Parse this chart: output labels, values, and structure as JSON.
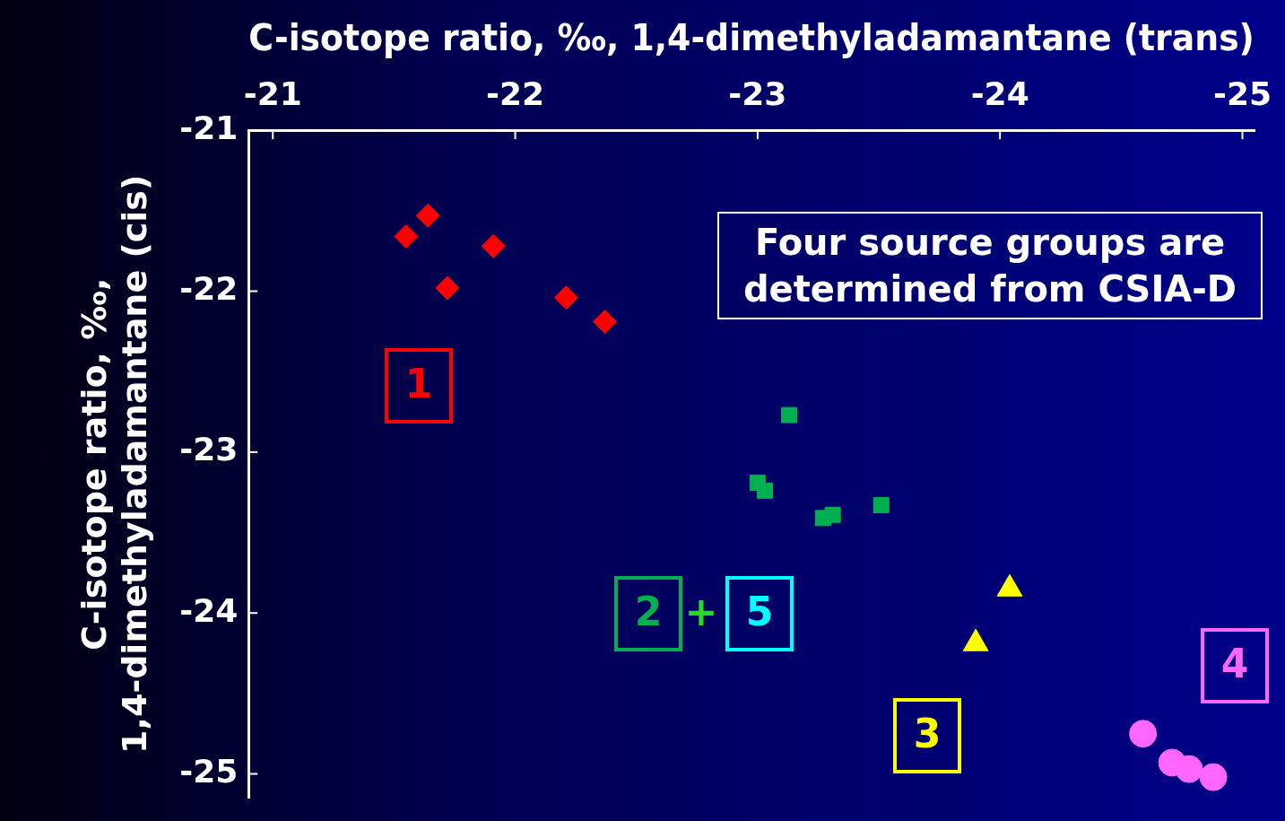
{
  "chart_data": {
    "type": "scatter",
    "xlabel": "C-isotope ratio, ‰, 1,4-dimethyladamantane (trans)",
    "ylabel": "C-isotope ratio, ‰,\n1,4-dimethyladamantane (cis)",
    "xlim": [
      -20.9,
      -25.05
    ],
    "xticks": [
      -21,
      -22,
      -23,
      -24,
      -25
    ],
    "ylim": [
      -25.15,
      -21
    ],
    "yticks": [
      -21,
      -22,
      -23,
      -24,
      -25
    ],
    "legend": false,
    "series": [
      {
        "name": "1",
        "color": "#ff0000",
        "marker": "diamond",
        "x": [
          -21.55,
          -21.64,
          -21.72,
          -21.91,
          -22.21,
          -22.37
        ],
        "values": [
          -21.66,
          -21.53,
          -21.98,
          -21.72,
          -22.04,
          -22.19
        ]
      },
      {
        "name": "2",
        "color": "#00b050",
        "marker": "square",
        "x": [
          -23.13,
          -23.0,
          -23.03,
          -23.27,
          -23.31,
          -23.51
        ],
        "values": [
          -22.77,
          -23.19,
          -23.24,
          -23.41,
          -23.39,
          -23.33
        ]
      },
      {
        "name": "3",
        "color": "#ffff00",
        "marker": "triangle",
        "x": [
          -24.04,
          -23.9
        ],
        "values": [
          -23.85,
          -24.19
        ]
      },
      {
        "name": "4",
        "color": "#ff66ff",
        "marker": "circle",
        "x": [
          -24.59,
          -24.71,
          -24.78,
          -24.88
        ],
        "values": [
          -24.75,
          -24.93,
          -24.97,
          -25.02
        ]
      }
    ],
    "annotations": [
      "Four source groups are\ndetermined from CSIA-D",
      "+",
      "5"
    ]
  }
}
